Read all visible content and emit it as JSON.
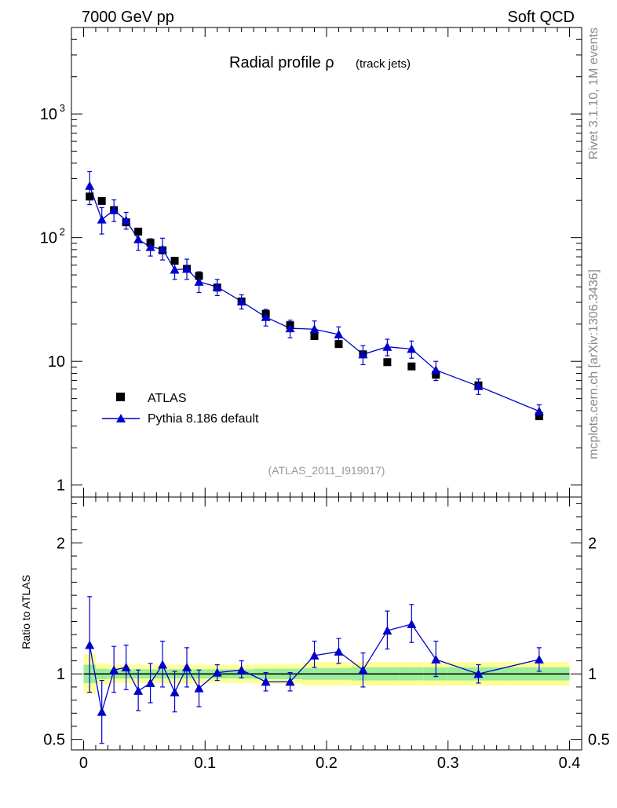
{
  "header": {
    "energy_label": "7000 GeV pp",
    "process_label": "Soft QCD",
    "side_label_top": "Rivet 3.1.10,  1M events",
    "side_label_bottom": "mcplots.cern.ch [arXiv:1306.3436]"
  },
  "plot": {
    "title_main": "Radial profile ρ",
    "title_sub": "(track jets)",
    "analysis_id": "(ATLAS_2011_I919017)",
    "ratio_ylabel": "Ratio to ATLAS"
  },
  "legend": {
    "data_label": "ATLAS",
    "mc_label": "Pythia 8.186 default"
  },
  "colors": {
    "data": "#000000",
    "mc": "#0000cc",
    "band_inner": "#99ee99",
    "band_outer": "#ffff99"
  },
  "chart_data": [
    {
      "type": "scatter",
      "panel": "main",
      "yscale": "log",
      "xlim": [
        -0.01,
        0.41
      ],
      "ylim": [
        0.8,
        5000
      ],
      "y_ticks": [
        "1",
        "10",
        "10²",
        "10³"
      ],
      "x": [
        0.005,
        0.015,
        0.025,
        0.035,
        0.045,
        0.055,
        0.065,
        0.075,
        0.085,
        0.095,
        0.11,
        0.13,
        0.15,
        0.17,
        0.19,
        0.21,
        0.23,
        0.25,
        0.27,
        0.29,
        0.325,
        0.375
      ],
      "series": [
        {
          "name": "ATLAS",
          "values": [
            215,
            198,
            167,
            133,
            112,
            91,
            79,
            65,
            56,
            49,
            39.5,
            30.5,
            24.2,
            19.6,
            16.0,
            13.8,
            11.4,
            9.85,
            9.1,
            7.8,
            6.4,
            3.6
          ]
        },
        {
          "name": "Pythia 8.186 default",
          "values": [
            262,
            140,
            167,
            138,
            97,
            84,
            81,
            55,
            56,
            44,
            40,
            30.5,
            22.8,
            18.5,
            18.2,
            16.5,
            11.4,
            13.1,
            12.6,
            8.5,
            6.3,
            3.95
          ],
          "err_lo": [
            77,
            33,
            32,
            21,
            18,
            13,
            15,
            9,
            10,
            8,
            6,
            4,
            3.5,
            3,
            3,
            2.5,
            2,
            2,
            2,
            1.5,
            0.9,
            0.5
          ],
          "err_hi": [
            80,
            35,
            35,
            22,
            20,
            14,
            18,
            11,
            11,
            9,
            6,
            4,
            3.5,
            3,
            3,
            2.5,
            2,
            2,
            2,
            1.5,
            0.9,
            0.5
          ]
        }
      ]
    },
    {
      "type": "line",
      "panel": "ratio",
      "ylabel": "Ratio to ATLAS",
      "xlim": [
        -0.01,
        0.41
      ],
      "ylim": [
        0.42,
        2.35
      ],
      "x_ticks": [
        "0",
        "0.1",
        "0.2",
        "0.3",
        "0.4"
      ],
      "y_ticks": [
        "0.5",
        "1",
        "2"
      ],
      "x": [
        0.005,
        0.015,
        0.025,
        0.035,
        0.045,
        0.055,
        0.065,
        0.075,
        0.085,
        0.095,
        0.11,
        0.13,
        0.15,
        0.17,
        0.19,
        0.21,
        0.23,
        0.25,
        0.27,
        0.29,
        0.325,
        0.375
      ],
      "series": [
        {
          "name": "Pythia 8.186 default",
          "values": [
            1.22,
            0.71,
            1.03,
            1.05,
            0.87,
            0.93,
            1.07,
            0.86,
            1.05,
            0.89,
            1.01,
            1.03,
            0.94,
            0.94,
            1.14,
            1.17,
            1.03,
            1.33,
            1.38,
            1.11,
            1.0,
            1.11
          ],
          "err_lo": [
            0.36,
            0.24,
            0.17,
            0.17,
            0.15,
            0.15,
            0.17,
            0.15,
            0.15,
            0.14,
            0.06,
            0.06,
            0.07,
            0.07,
            0.09,
            0.09,
            0.13,
            0.14,
            0.14,
            0.13,
            0.07,
            0.09
          ],
          "err_hi": [
            0.37,
            0.24,
            0.18,
            0.17,
            0.16,
            0.15,
            0.18,
            0.16,
            0.15,
            0.14,
            0.06,
            0.07,
            0.07,
            0.07,
            0.11,
            0.1,
            0.13,
            0.15,
            0.15,
            0.14,
            0.07,
            0.09
          ]
        }
      ],
      "band_edges": [
        0.0,
        0.01,
        0.02,
        0.03,
        0.04,
        0.05,
        0.06,
        0.07,
        0.08,
        0.09,
        0.1,
        0.12,
        0.14,
        0.16,
        0.18,
        0.2,
        0.22,
        0.24,
        0.26,
        0.28,
        0.3,
        0.35,
        0.4
      ],
      "band_inner": [
        0.07,
        0.04,
        0.035,
        0.035,
        0.035,
        0.035,
        0.035,
        0.035,
        0.035,
        0.035,
        0.035,
        0.035,
        0.04,
        0.04,
        0.045,
        0.045,
        0.05,
        0.05,
        0.05,
        0.05,
        0.05,
        0.05
      ],
      "band_outer": [
        0.15,
        0.08,
        0.07,
        0.07,
        0.07,
        0.07,
        0.07,
        0.07,
        0.07,
        0.07,
        0.07,
        0.07,
        0.075,
        0.075,
        0.09,
        0.09,
        0.09,
        0.09,
        0.09,
        0.09,
        0.09,
        0.09
      ]
    }
  ]
}
